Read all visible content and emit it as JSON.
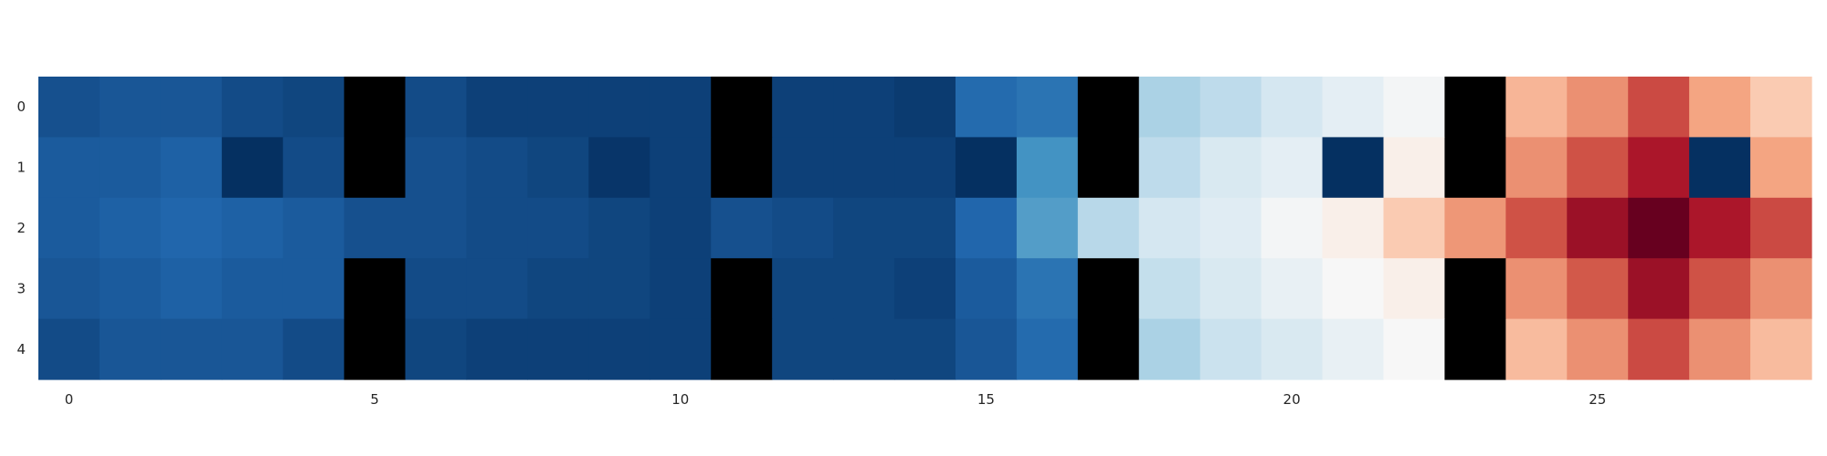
{
  "chart_data": {
    "type": "heatmap",
    "title": "",
    "xlabel": "",
    "ylabel": "",
    "x_tick_labels": [
      "0",
      "5",
      "10",
      "15",
      "20",
      "25"
    ],
    "x_tick_values": [
      0,
      5,
      10,
      15,
      20,
      25
    ],
    "y_tick_labels": [
      "0",
      "1",
      "2",
      "3",
      "4"
    ],
    "y_tick_values": [
      0,
      1,
      2,
      3,
      4
    ],
    "n_rows": 5,
    "n_cols": 29,
    "colormap": "RdBu_r",
    "masked_color": "#000000",
    "vmin": 0.0,
    "vmax": 1.0,
    "grid": false,
    "colorbar": false,
    "values": [
      [
        0.06,
        0.07,
        0.07,
        0.05,
        0.04,
        null,
        0.05,
        0.03,
        0.03,
        0.03,
        0.03,
        null,
        0.03,
        0.03,
        0.02,
        0.11,
        0.13,
        null,
        0.34,
        0.37,
        0.41,
        0.45,
        0.49,
        null,
        0.67,
        0.73,
        0.83,
        0.7,
        0.63
      ],
      [
        0.08,
        0.08,
        0.09,
        0.0,
        0.05,
        null,
        0.06,
        0.05,
        0.04,
        0.01,
        0.03,
        null,
        0.03,
        0.03,
        0.03,
        0.0,
        0.2,
        null,
        0.37,
        0.42,
        0.45,
        0.0,
        0.53,
        null,
        0.73,
        0.82,
        0.91,
        0.0,
        0.7
      ],
      [
        0.08,
        0.09,
        0.1,
        0.09,
        0.08,
        0.06,
        0.06,
        0.05,
        0.05,
        0.04,
        0.03,
        0.06,
        0.05,
        0.04,
        0.04,
        0.1,
        0.22,
        0.36,
        0.41,
        0.44,
        0.49,
        0.53,
        0.63,
        0.72,
        0.82,
        0.93,
        1.0,
        0.91,
        0.83
      ],
      [
        0.07,
        0.08,
        0.09,
        0.08,
        0.08,
        null,
        0.05,
        0.05,
        0.04,
        0.04,
        0.03,
        null,
        0.04,
        0.04,
        0.03,
        0.08,
        0.13,
        null,
        0.38,
        0.42,
        0.46,
        0.5,
        0.53,
        null,
        0.73,
        0.81,
        0.93,
        0.82,
        0.73
      ],
      [
        0.05,
        0.07,
        0.07,
        0.07,
        0.05,
        null,
        0.04,
        0.03,
        0.03,
        0.03,
        0.03,
        null,
        0.04,
        0.04,
        0.04,
        0.07,
        0.11,
        null,
        0.34,
        0.39,
        0.42,
        0.46,
        0.5,
        null,
        0.66,
        0.73,
        0.83,
        0.73,
        0.66
      ]
    ]
  }
}
